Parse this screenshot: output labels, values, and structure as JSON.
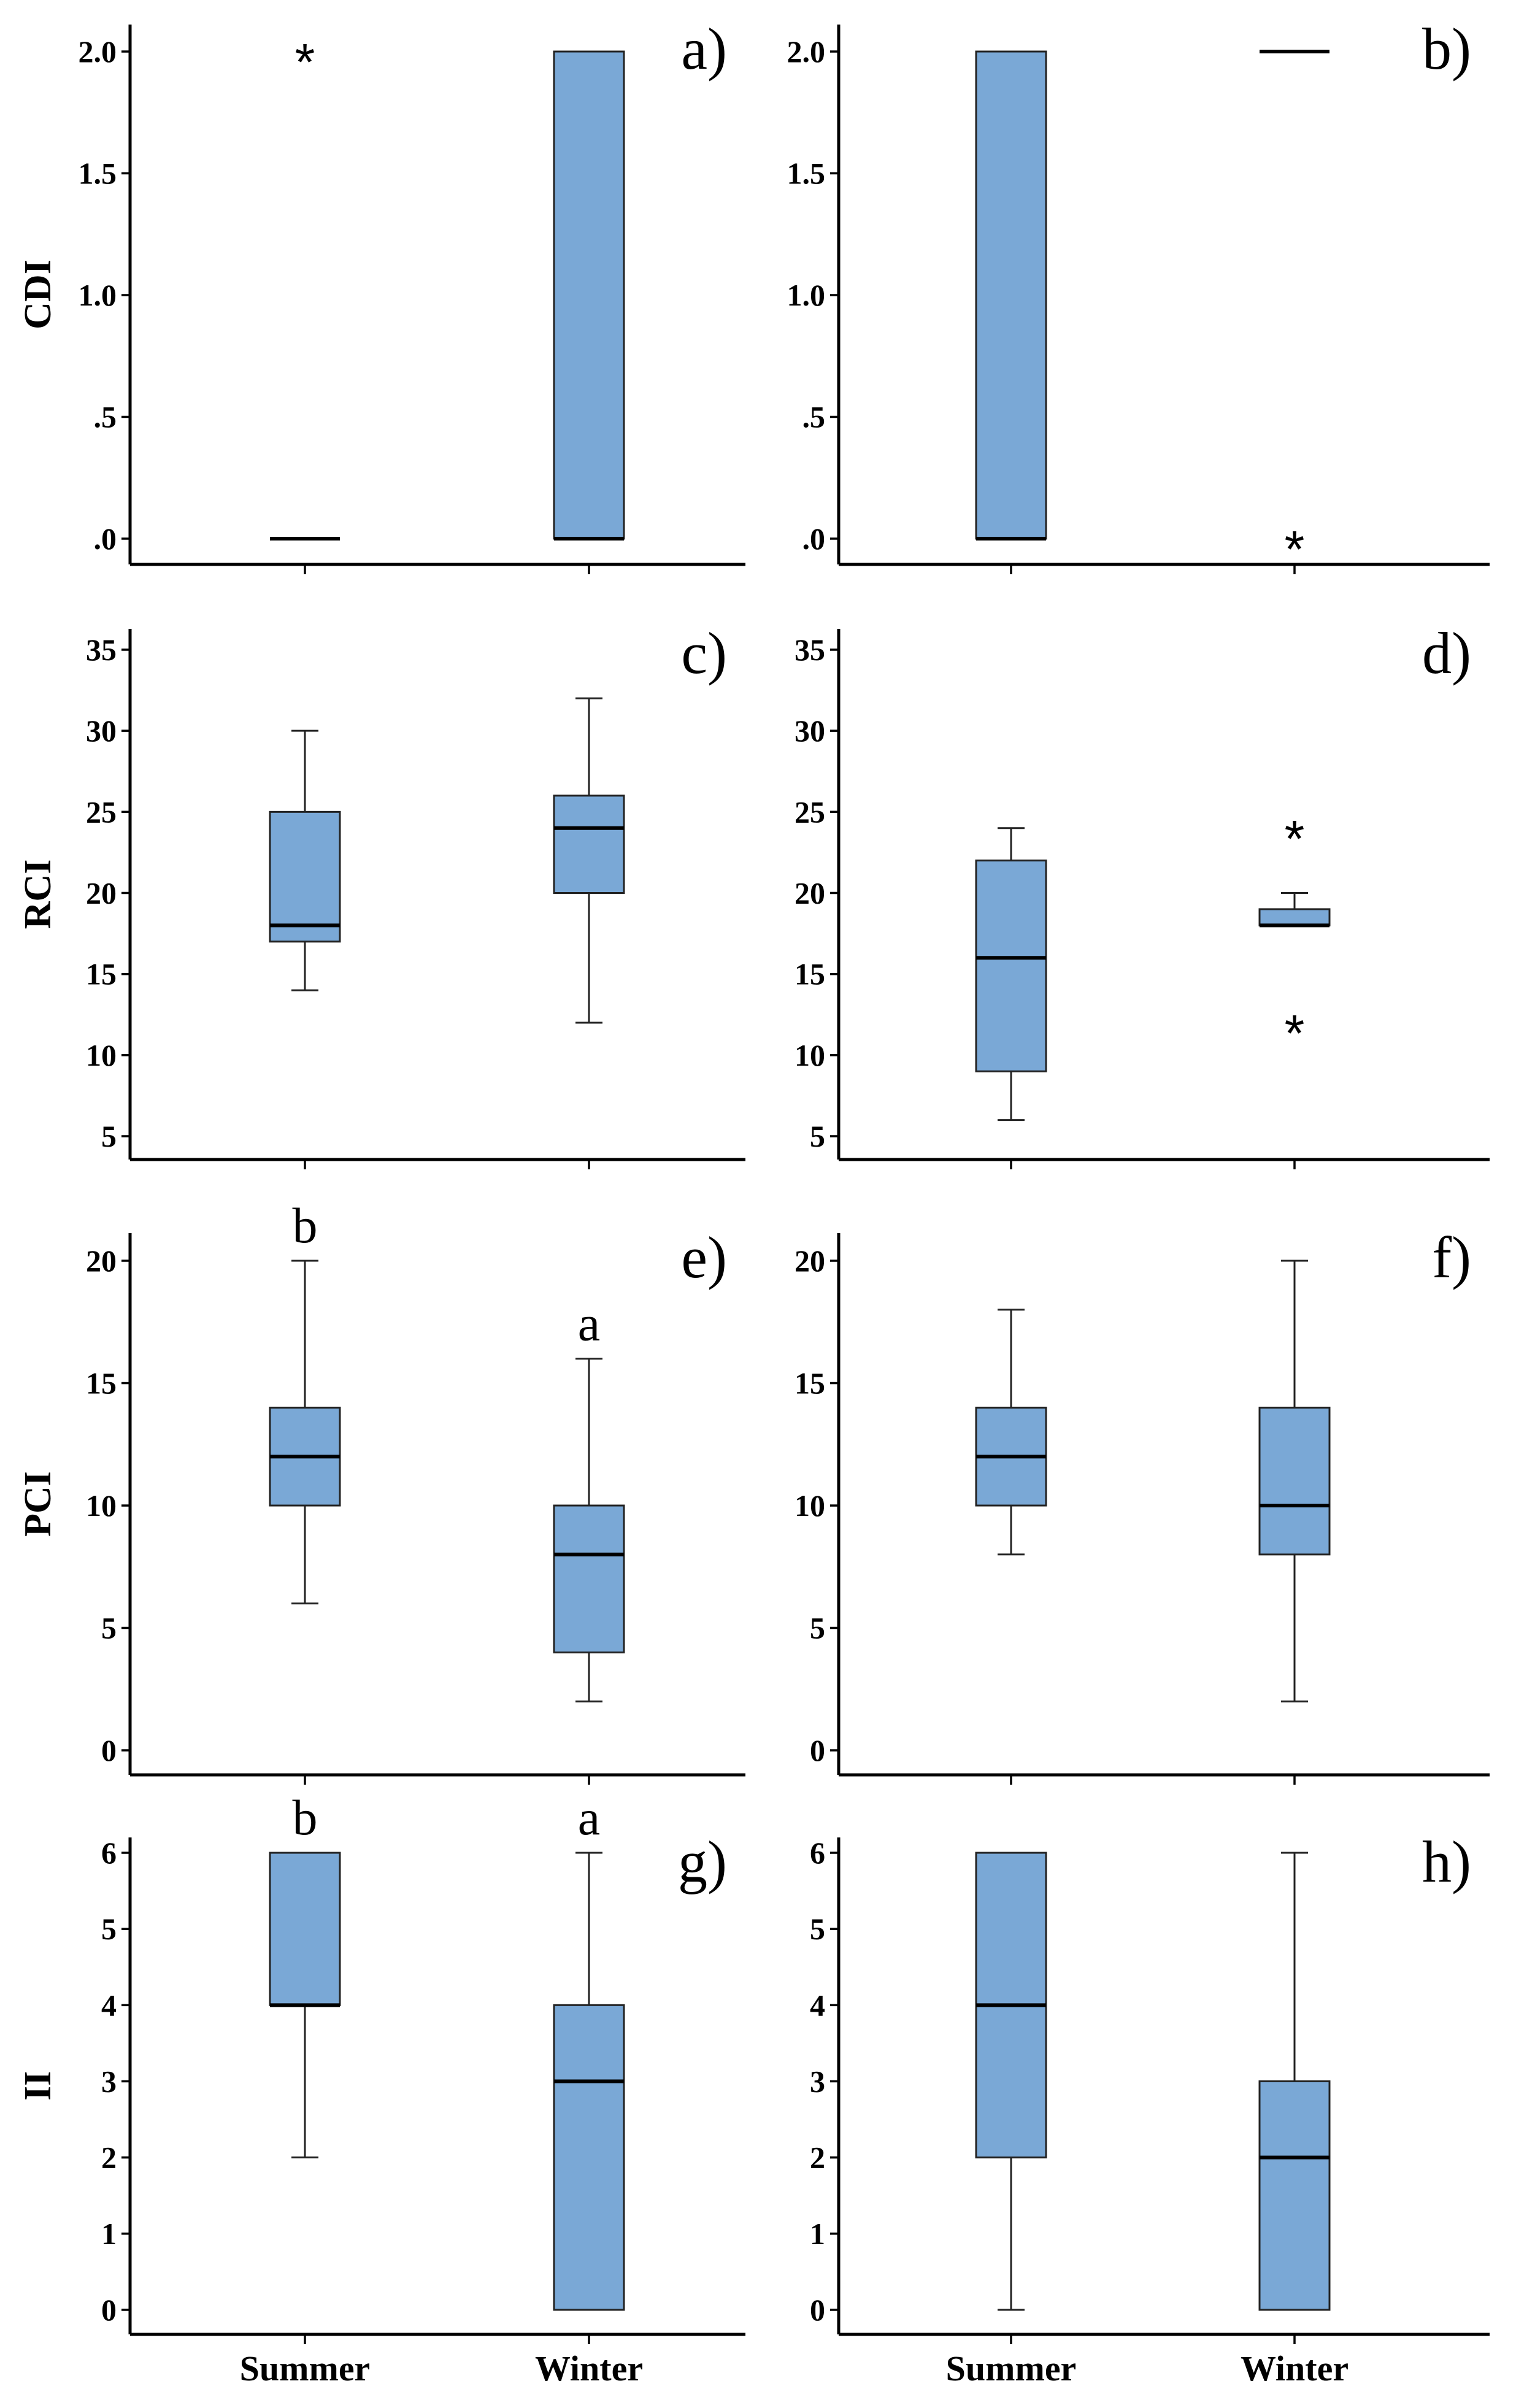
{
  "chart_data": [
    {
      "panel": "a)",
      "ylabel": "CDI",
      "type": "box",
      "ylim": [
        -0.1,
        2.1
      ],
      "yticks": [
        0,
        0.5,
        1.0,
        1.5,
        2.0
      ],
      "ytick_labels": [
        ".0",
        ".5",
        "1.0",
        "1.5",
        "2.0"
      ],
      "groups": [
        {
          "category": "Summer",
          "min": 0,
          "q1": 0,
          "median": 0,
          "q3": 0,
          "max": 0,
          "outliers": [
            2.0
          ],
          "label": ""
        },
        {
          "category": "Winter",
          "min": 0,
          "q1": 0,
          "median": 0,
          "q3": 2.0,
          "max": 2.0,
          "outliers": [],
          "label": ""
        }
      ]
    },
    {
      "panel": "b)",
      "ylabel": "",
      "type": "box",
      "ylim": [
        -0.1,
        2.1
      ],
      "yticks": [
        0,
        0.5,
        1.0,
        1.5,
        2.0
      ],
      "ytick_labels": [
        ".0",
        ".5",
        "1.0",
        "1.5",
        "2.0"
      ],
      "groups": [
        {
          "category": "Summer",
          "min": 0,
          "q1": 0,
          "median": 0,
          "q3": 2.0,
          "max": 2.0,
          "outliers": [],
          "label": ""
        },
        {
          "category": "Winter",
          "min": 2.0,
          "q1": 2.0,
          "median": 2.0,
          "q3": 2.0,
          "max": 2.0,
          "outliers": [
            0
          ],
          "label": ""
        }
      ]
    },
    {
      "panel": "c)",
      "ylabel": "RCI",
      "type": "box",
      "ylim": [
        3.5,
        36.5
      ],
      "yticks": [
        5,
        10,
        15,
        20,
        25,
        30,
        35
      ],
      "ytick_labels": [
        "5",
        "10",
        "15",
        "20",
        "25",
        "30",
        "35"
      ],
      "groups": [
        {
          "category": "Summer",
          "min": 14,
          "q1": 17,
          "median": 18,
          "q3": 25,
          "max": 30,
          "outliers": [],
          "label": ""
        },
        {
          "category": "Winter",
          "min": 12,
          "q1": 20,
          "median": 24,
          "q3": 26,
          "max": 32,
          "outliers": [],
          "label": ""
        }
      ]
    },
    {
      "panel": "d)",
      "ylabel": "",
      "type": "box",
      "ylim": [
        3.5,
        36.5
      ],
      "yticks": [
        5,
        10,
        15,
        20,
        25,
        30,
        35
      ],
      "ytick_labels": [
        "5",
        "10",
        "15",
        "20",
        "25",
        "30",
        "35"
      ],
      "groups": [
        {
          "category": "Summer",
          "min": 6,
          "q1": 9,
          "median": 16,
          "q3": 22,
          "max": 24,
          "outliers": [],
          "label": ""
        },
        {
          "category": "Winter",
          "min": 18,
          "q1": 18,
          "median": 18,
          "q3": 19,
          "max": 20,
          "outliers": [
            24,
            12
          ],
          "label": ""
        }
      ]
    },
    {
      "panel": "e)",
      "ylabel": "PCI",
      "type": "box",
      "ylim": [
        -1,
        21
      ],
      "yticks": [
        0,
        5,
        10,
        15,
        20
      ],
      "ytick_labels": [
        "0",
        "5",
        "10",
        "15",
        "20"
      ],
      "groups": [
        {
          "category": "Summer",
          "min": 6,
          "q1": 10,
          "median": 12,
          "q3": 14,
          "max": 20,
          "outliers": [],
          "label": "b"
        },
        {
          "category": "Winter",
          "min": 2,
          "q1": 4,
          "median": 8,
          "q3": 10,
          "max": 16,
          "outliers": [],
          "label": "a"
        }
      ]
    },
    {
      "panel": "f)",
      "ylabel": "",
      "type": "box",
      "ylim": [
        -1,
        21
      ],
      "yticks": [
        0,
        5,
        10,
        15,
        20
      ],
      "ytick_labels": [
        "0",
        "5",
        "10",
        "15",
        "20"
      ],
      "groups": [
        {
          "category": "Summer",
          "min": 8,
          "q1": 10,
          "median": 12,
          "q3": 14,
          "max": 18,
          "outliers": [],
          "label": ""
        },
        {
          "category": "Winter",
          "min": 2,
          "q1": 8,
          "median": 10,
          "q3": 14,
          "max": 20,
          "outliers": [],
          "label": ""
        }
      ]
    },
    {
      "panel": "g)",
      "ylabel": "II",
      "type": "box",
      "ylim": [
        -0.3,
        6.1
      ],
      "yticks": [
        0,
        1,
        2,
        3,
        4,
        5,
        6
      ],
      "ytick_labels": [
        "0",
        "1",
        "2",
        "3",
        "4",
        "5",
        "6"
      ],
      "groups": [
        {
          "category": "Summer",
          "min": 2,
          "q1": 4,
          "median": 4,
          "q3": 6,
          "max": 6,
          "outliers": [],
          "label": "b"
        },
        {
          "category": "Winter",
          "min": 0,
          "q1": 0,
          "median": 3,
          "q3": 4,
          "max": 6,
          "outliers": [],
          "label": "a"
        }
      ]
    },
    {
      "panel": "h)",
      "ylabel": "",
      "type": "box",
      "ylim": [
        -0.3,
        6.1
      ],
      "yticks": [
        0,
        1,
        2,
        3,
        4,
        5,
        6
      ],
      "ytick_labels": [
        "0",
        "1",
        "2",
        "3",
        "4",
        "5",
        "6"
      ],
      "groups": [
        {
          "category": "Summer",
          "min": 0,
          "q1": 2,
          "median": 4,
          "q3": 6,
          "max": 6,
          "outliers": [],
          "label": ""
        },
        {
          "category": "Winter",
          "min": 0,
          "q1": 0,
          "median": 2,
          "q3": 3,
          "max": 6,
          "outliers": [],
          "label": ""
        }
      ]
    }
  ],
  "categories": [
    "Summer",
    "Winter"
  ],
  "colors": {
    "box_fill": "#7aa8d6",
    "line": "#000000"
  }
}
